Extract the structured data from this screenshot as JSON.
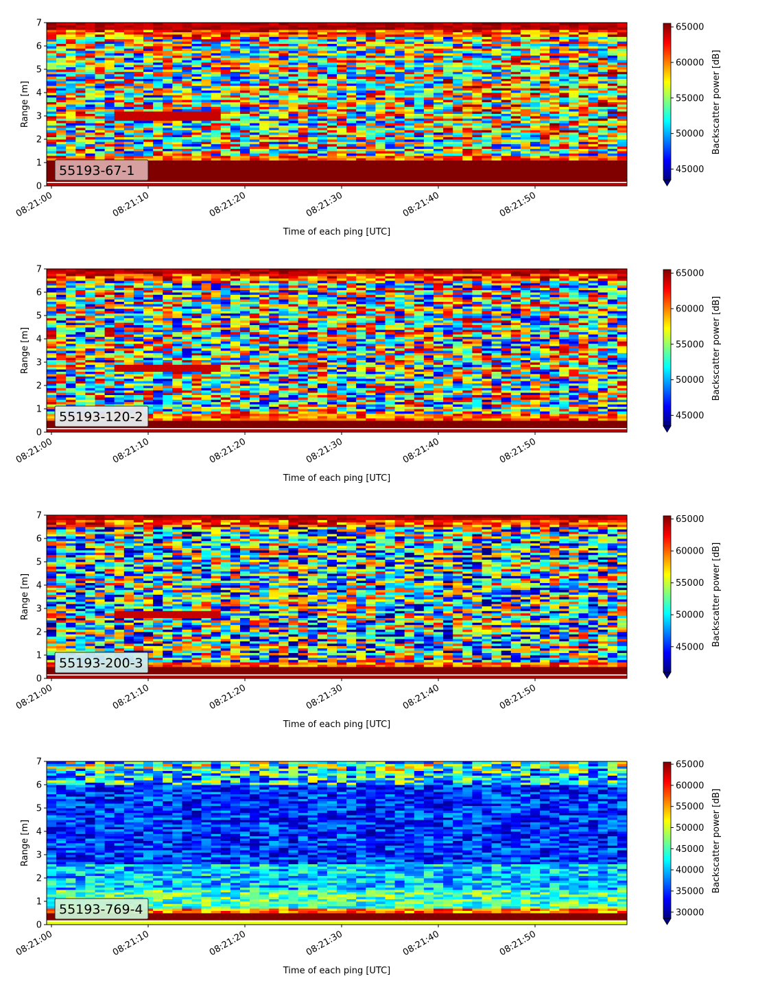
{
  "chart_data": [
    {
      "type": "heatmap",
      "annotation": "55193-67-1",
      "annotation_color": "#dba9a9",
      "xlabel": "Time of each ping [UTC]",
      "ylabel": "Range [m]",
      "ylim": [
        0,
        7
      ],
      "yticks": [
        "0",
        "1",
        "2",
        "3",
        "4",
        "5",
        "6",
        "7"
      ],
      "xticks": [
        "08:21:00",
        "08:21:10",
        "08:21:20",
        "08:21:30",
        "08:21:40",
        "08:21:50"
      ],
      "colorbar": {
        "label": "Backscatter power [dB]",
        "min": 43500,
        "max": 65500,
        "ticks": [
          "45000",
          "50000",
          "55000",
          "60000",
          "65000"
        ],
        "tick_values": [
          45000,
          50000,
          55000,
          60000,
          65000
        ],
        "extend": "min"
      },
      "colormap": "jet",
      "pings": 60,
      "range_bins": 70,
      "profile": "strong"
    },
    {
      "type": "heatmap",
      "annotation": "55193-120-2",
      "annotation_color": "#e7ecf0",
      "xlabel": "Time of each ping [UTC]",
      "ylabel": "Range [m]",
      "ylim": [
        0,
        7
      ],
      "yticks": [
        "0",
        "1",
        "2",
        "3",
        "4",
        "5",
        "6",
        "7"
      ],
      "xticks": [
        "08:21:00",
        "08:21:10",
        "08:21:20",
        "08:21:30",
        "08:21:40",
        "08:21:50"
      ],
      "colorbar": {
        "label": "Backscatter power [dB]",
        "min": 43500,
        "max": 65500,
        "ticks": [
          "45000",
          "50000",
          "55000",
          "60000",
          "65000"
        ],
        "tick_values": [
          45000,
          50000,
          55000,
          60000,
          65000
        ],
        "extend": "min"
      },
      "colormap": "jet",
      "pings": 60,
      "range_bins": 70,
      "profile": "medium"
    },
    {
      "type": "heatmap",
      "annotation": "55193-200-3",
      "annotation_color": "#cfeef0",
      "xlabel": "Time of each ping [UTC]",
      "ylabel": "Range [m]",
      "ylim": [
        0,
        7
      ],
      "yticks": [
        "0",
        "1",
        "2",
        "3",
        "4",
        "5",
        "6",
        "7"
      ],
      "xticks": [
        "08:21:00",
        "08:21:10",
        "08:21:20",
        "08:21:30",
        "08:21:40",
        "08:21:50"
      ],
      "colorbar": {
        "label": "Backscatter power [dB]",
        "min": 41000,
        "max": 65500,
        "ticks": [
          "45000",
          "50000",
          "55000",
          "60000",
          "65000"
        ],
        "tick_values": [
          45000,
          50000,
          55000,
          60000,
          65000
        ],
        "extend": "min"
      },
      "colormap": "jet",
      "pings": 60,
      "range_bins": 70,
      "profile": "weak"
    },
    {
      "type": "heatmap",
      "annotation": "55193-769-4",
      "annotation_color": "#cdf2d4",
      "xlabel": "Time of each ping [UTC]",
      "ylabel": "Range [m]",
      "ylim": [
        0,
        7
      ],
      "yticks": [
        "0",
        "1",
        "2",
        "3",
        "4",
        "5",
        "6",
        "7"
      ],
      "xticks": [
        "08:21:00",
        "08:21:10",
        "08:21:20",
        "08:21:30",
        "08:21:40",
        "08:21:50"
      ],
      "colorbar": {
        "label": "Backscatter power [dB]",
        "min": 28500,
        "max": 65500,
        "ticks": [
          "30000",
          "35000",
          "40000",
          "45000",
          "50000",
          "55000",
          "60000",
          "65000"
        ],
        "tick_values": [
          30000,
          35000,
          40000,
          45000,
          50000,
          55000,
          60000,
          65000
        ],
        "extend": "min"
      },
      "colormap": "jet",
      "pings": 60,
      "range_bins": 70,
      "profile": "deep"
    }
  ]
}
